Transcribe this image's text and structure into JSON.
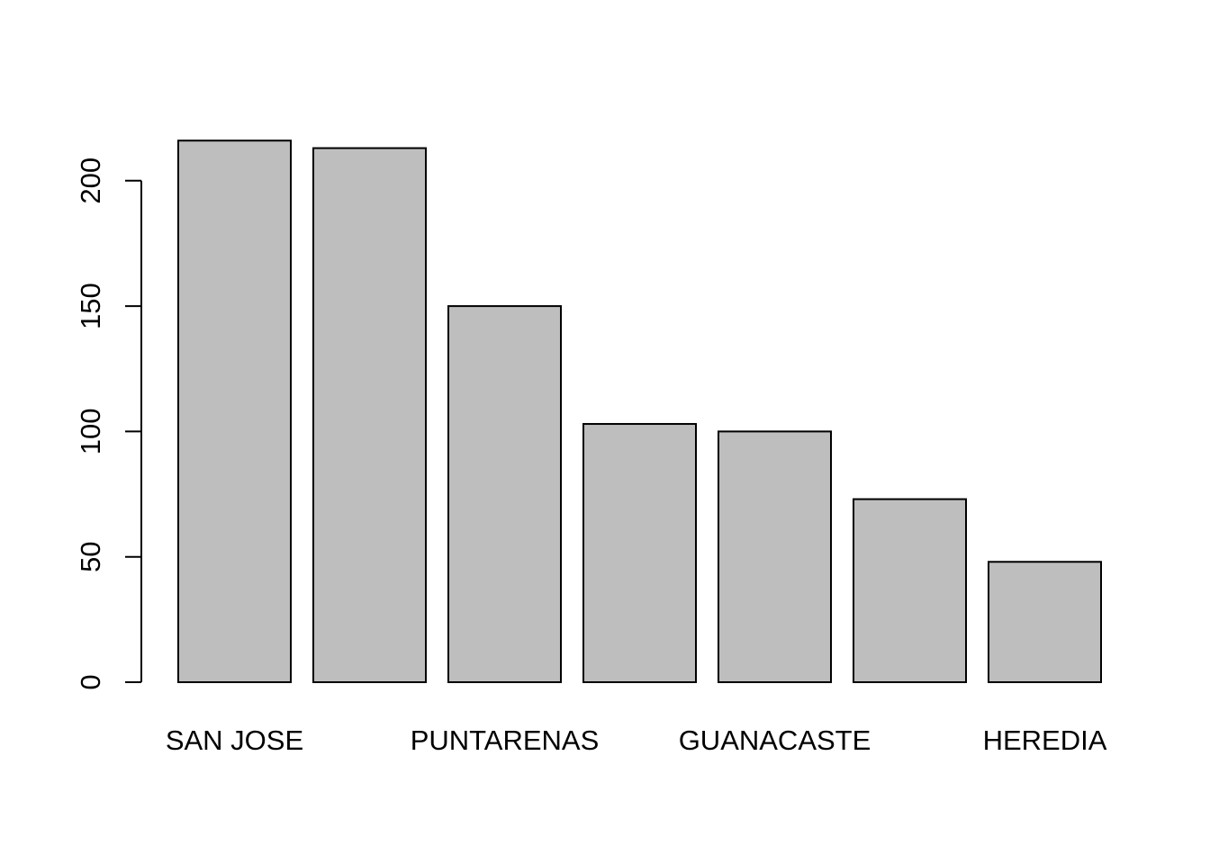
{
  "chart_data": {
    "type": "bar",
    "title": "",
    "xlabel": "",
    "ylabel": "",
    "categories": [
      "SAN JOSE",
      "",
      "PUNTARENAS",
      "",
      "GUANACASTE",
      "",
      "HEREDIA"
    ],
    "values": [
      216,
      213,
      150,
      103,
      100,
      73,
      48
    ],
    "ylim": [
      0,
      216
    ],
    "yticks": [
      0,
      50,
      100,
      150,
      200
    ],
    "grid": false,
    "legend": "none",
    "colors": {
      "bar_fill": "#bebebe",
      "bar_stroke": "#000000",
      "axis": "#000000",
      "background": "#ffffff"
    }
  }
}
